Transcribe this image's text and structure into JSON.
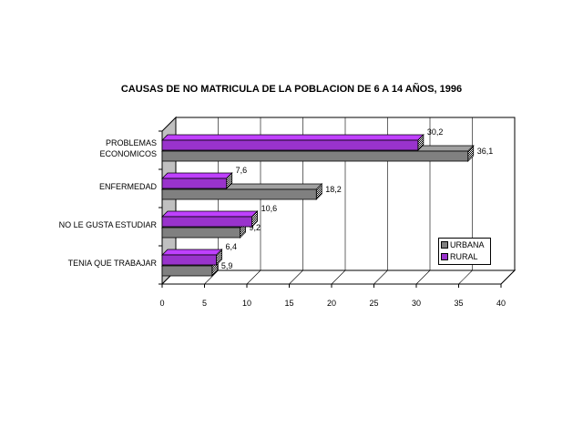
{
  "chart_data": {
    "type": "bar",
    "orientation": "horizontal",
    "style": "3d",
    "title": "CAUSAS DE NO MATRICULA DE LA POBLACION DE 6 A 14 AÑOS, 1996",
    "categories": [
      [
        "PROBLEMAS",
        "ECONOMICOS"
      ],
      [
        "ENFERMEDAD"
      ],
      [
        "NO LE GUSTA ESTUDIAR"
      ],
      [
        "TENIA QUE TRABAJAR"
      ]
    ],
    "series": [
      {
        "name": "URBANA",
        "values": [
          36.1,
          18.2,
          9.2,
          5.9
        ],
        "labels": [
          "36,1",
          "18,2",
          "9,2",
          "5,9"
        ],
        "color": "#808080"
      },
      {
        "name": "RURAL",
        "values": [
          30.2,
          7.6,
          10.6,
          6.4
        ],
        "labels": [
          "30,2",
          "7,6",
          "10,6",
          "6,4"
        ],
        "color": "#9933cc"
      }
    ],
    "xlim": [
      0,
      40
    ],
    "xticks": [
      "0",
      "5",
      "10",
      "15",
      "20",
      "25",
      "30",
      "35",
      "40"
    ],
    "grid": true,
    "legend": "right"
  }
}
